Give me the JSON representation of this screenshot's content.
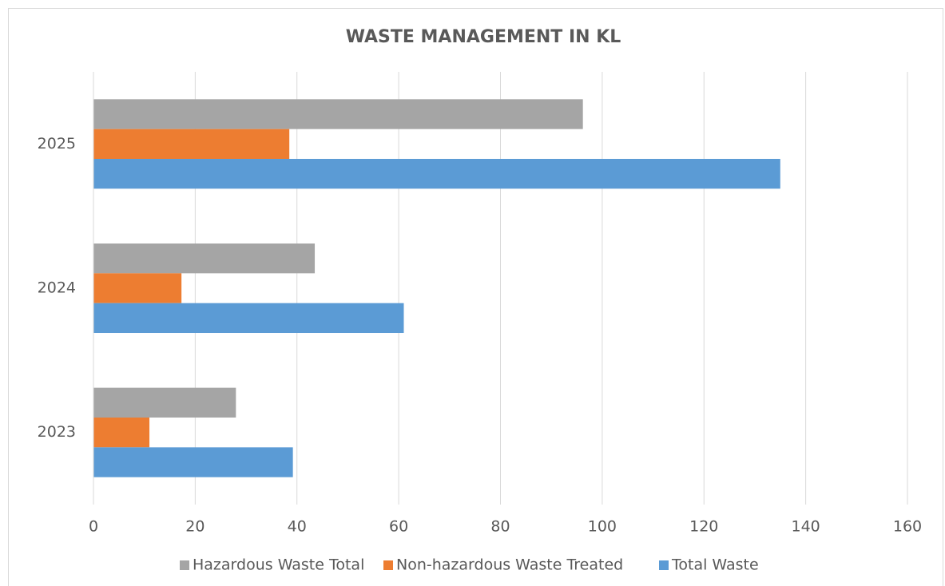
{
  "chart_data": {
    "type": "bar",
    "orientation": "horizontal",
    "title": "WASTE MANAGEMENT IN KL",
    "categories": [
      "2023",
      "2024",
      "2025"
    ],
    "series": [
      {
        "name": "Hazardous Waste Total",
        "color": "#a5a5a5",
        "values": [
          28,
          43.5,
          96.2
        ]
      },
      {
        "name": "Non-hazardous Waste Treated",
        "color": "#ed7d31",
        "values": [
          11,
          17.3,
          38.5
        ]
      },
      {
        "name": "Total Waste",
        "color": "#5b9bd5",
        "values": [
          39.2,
          61,
          135
        ]
      }
    ],
    "xlim": [
      0,
      160
    ],
    "xticks": [
      0,
      20,
      40,
      60,
      80,
      100,
      120,
      140,
      160
    ],
    "grid": true,
    "legend": "bottom"
  }
}
